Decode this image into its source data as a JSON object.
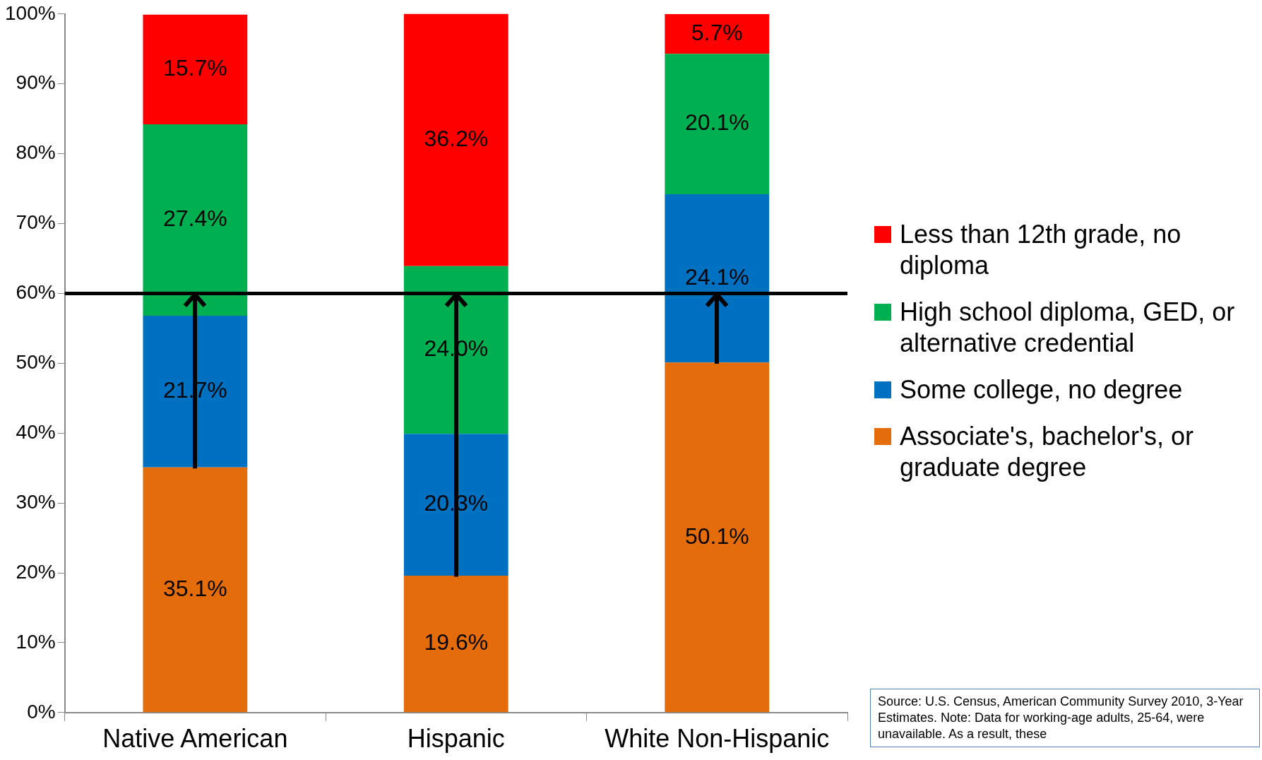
{
  "chart_data": {
    "type": "bar",
    "stacked": true,
    "categories": [
      "Native American",
      "Hispanic",
      "White Non-Hispanic"
    ],
    "series": [
      {
        "name": "Associate's, bachelor's, or graduate degree",
        "color": "#e46c0a",
        "values": [
          35.1,
          19.6,
          50.1
        ],
        "value_labels": [
          "35.1%",
          "19.6%",
          "50.1%"
        ]
      },
      {
        "name": "Some college, no degree",
        "color": "#0070c0",
        "values": [
          21.7,
          20.3,
          24.1
        ],
        "value_labels": [
          "21.7%",
          "20.3%",
          "24.1%"
        ]
      },
      {
        "name": "High school diploma, GED, or alternative credential",
        "color": "#00b050",
        "values": [
          27.4,
          24.0,
          20.1
        ],
        "value_labels": [
          "27.4%",
          "24.0%",
          "20.1%"
        ]
      },
      {
        "name": "Less than 12th grade, no diploma",
        "color": "#ff0000",
        "values": [
          15.7,
          36.2,
          5.7
        ],
        "value_labels": [
          "15.7%",
          "36.2%",
          "5.7%"
        ]
      }
    ],
    "ylim": [
      0,
      100
    ],
    "yticks": [
      {
        "value": 0,
        "label": "0%"
      },
      {
        "value": 10,
        "label": "10%"
      },
      {
        "value": 20,
        "label": "20%"
      },
      {
        "value": 30,
        "label": "30%"
      },
      {
        "value": 40,
        "label": "40%"
      },
      {
        "value": 50,
        "label": "50%"
      },
      {
        "value": 60,
        "label": "60%"
      },
      {
        "value": 70,
        "label": "70%"
      },
      {
        "value": 80,
        "label": "80%"
      },
      {
        "value": 90,
        "label": "90%"
      },
      {
        "value": 100,
        "label": "100%"
      }
    ],
    "grid": false,
    "legend": "right",
    "ref_lines": [
      {
        "axis": "y",
        "value": 60,
        "color": "#000000"
      }
    ],
    "annotations": [
      "Source: U.S. Census, American Community Survey 2010, 3-Year Estimates. Note: Data for working-age adults, 25-64, were unavailable. As a result, these"
    ]
  }
}
